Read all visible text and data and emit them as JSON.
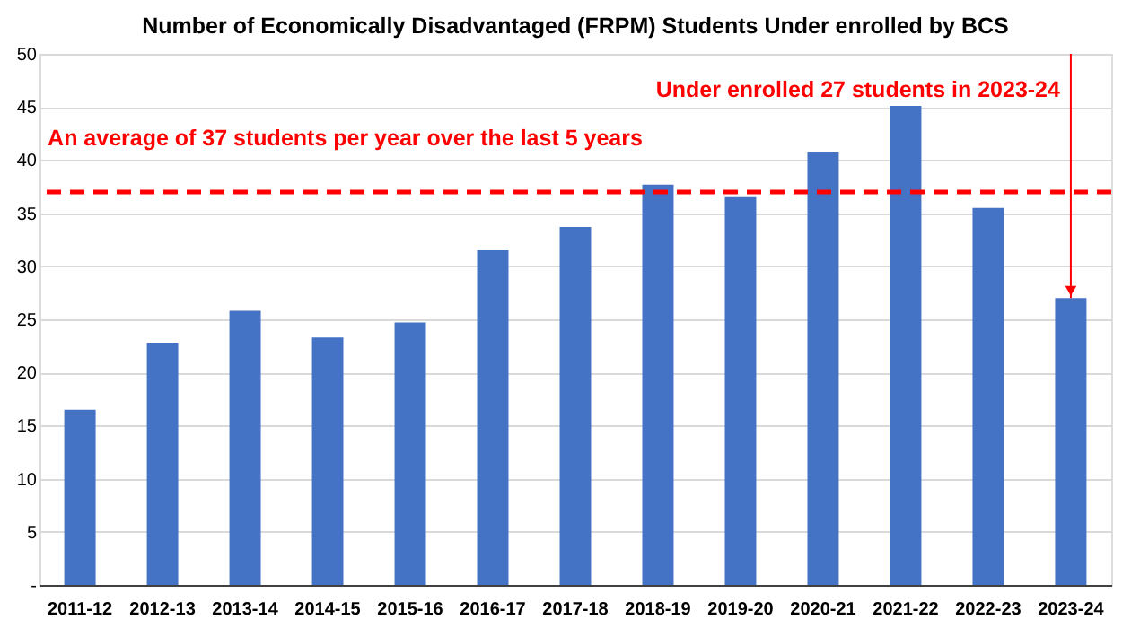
{
  "chart_data": {
    "type": "bar",
    "title": "Number of Economically Disadvantaged (FRPM) Students Under enrolled by BCS",
    "categories": [
      "2011-12",
      "2012-13",
      "2013-14",
      "2014-15",
      "2015-16",
      "2016-17",
      "2017-18",
      "2018-19",
      "2019-20",
      "2020-21",
      "2021-22",
      "2022-23",
      "2023-24"
    ],
    "values": [
      16.5,
      22.8,
      25.8,
      23.3,
      24.7,
      31.5,
      33.7,
      37.7,
      36.5,
      40.8,
      45.1,
      35.5,
      27
    ],
    "color": "#4472c4",
    "ylim": [
      0,
      50
    ],
    "yticks": [
      {
        "value": 0,
        "label": "-"
      },
      5,
      10,
      15,
      20,
      25,
      30,
      35,
      40,
      45,
      50
    ],
    "grid": "y",
    "ref_lines": [
      {
        "axis": "y",
        "value": 37,
        "label": "An average of 37 students per year over the last 5 years",
        "color": "#ff0000",
        "line_style": "dashed"
      }
    ],
    "annotations": [
      {
        "text": "Under enrolled 27 students  in 2023-24",
        "x": "2023-24",
        "y": 27
      }
    ]
  }
}
